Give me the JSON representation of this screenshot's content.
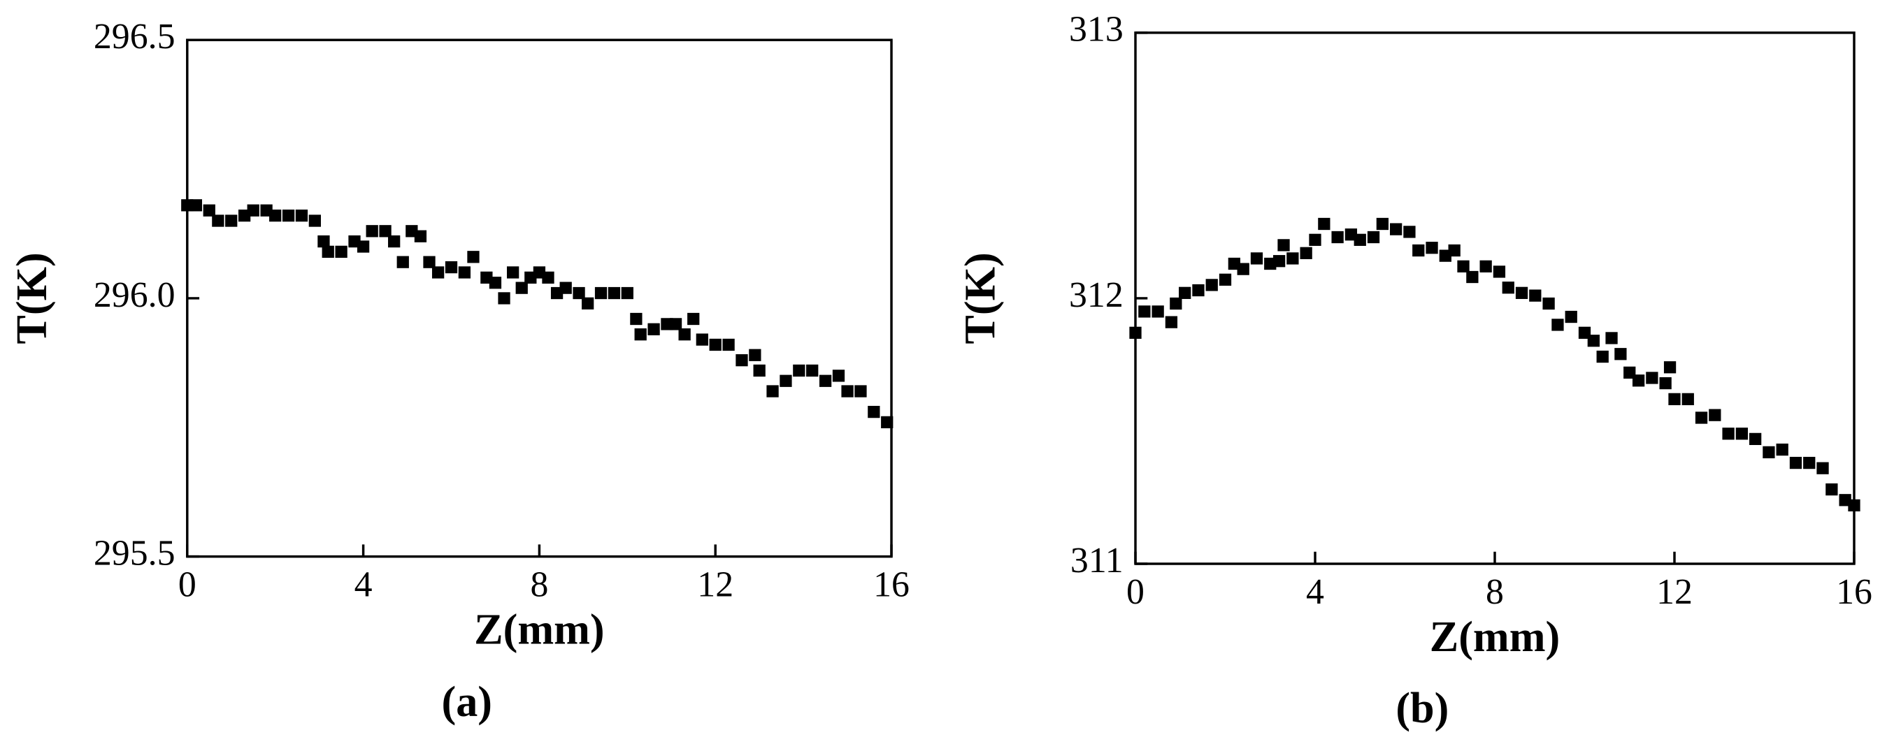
{
  "chart_data": [
    {
      "type": "scatter",
      "caption": "(a)",
      "xlabel": "Z(mm)",
      "ylabel": "T(K)",
      "color": "#000000",
      "xlim": [
        0,
        16
      ],
      "xticks": [
        0,
        4,
        8,
        12,
        16
      ],
      "ylim": [
        295.5,
        296.5
      ],
      "yticks": [
        295.5,
        {
          "value": 296,
          "label": "296.0"
        },
        296.5
      ],
      "x": [
        0,
        0.2,
        0.5,
        0.7,
        1.0,
        1.3,
        1.5,
        1.8,
        2.0,
        2.3,
        2.6,
        2.9,
        3.1,
        3.2,
        3.5,
        3.8,
        4.0,
        4.2,
        4.5,
        4.7,
        4.9,
        5.1,
        5.3,
        5.5,
        5.7,
        6.0,
        6.3,
        6.5,
        6.8,
        7.0,
        7.2,
        7.4,
        7.6,
        7.8,
        8.0,
        8.2,
        8.4,
        8.6,
        8.9,
        9.1,
        9.4,
        9.7,
        10.0,
        10.2,
        10.3,
        10.6,
        10.9,
        11.1,
        11.3,
        11.5,
        11.7,
        12.0,
        12.3,
        12.6,
        12.9,
        13.0,
        13.3,
        13.6,
        13.9,
        14.2,
        14.5,
        14.8,
        15.0,
        15.3,
        15.6,
        15.9
      ],
      "y": [
        296.18,
        296.18,
        296.17,
        296.15,
        296.15,
        296.16,
        296.17,
        296.17,
        296.16,
        296.16,
        296.16,
        296.15,
        296.11,
        296.09,
        296.09,
        296.11,
        296.1,
        296.13,
        296.13,
        296.11,
        296.07,
        296.13,
        296.12,
        296.07,
        296.05,
        296.06,
        296.05,
        296.08,
        296.04,
        296.03,
        296.0,
        296.05,
        296.02,
        296.04,
        296.05,
        296.04,
        296.01,
        296.02,
        296.01,
        295.99,
        296.01,
        296.01,
        296.01,
        295.96,
        295.93,
        295.94,
        295.95,
        295.95,
        295.93,
        295.96,
        295.92,
        295.91,
        295.91,
        295.88,
        295.89,
        295.86,
        295.82,
        295.84,
        295.86,
        295.86,
        295.84,
        295.85,
        295.82,
        295.82,
        295.78,
        295.76
      ]
    },
    {
      "type": "scatter",
      "caption": "(b)",
      "xlabel": "Z(mm)",
      "ylabel": "T(K)",
      "color": "#000000",
      "xlim": [
        0,
        16
      ],
      "xticks": [
        0,
        4,
        8,
        12,
        16
      ],
      "ylim": [
        311,
        313
      ],
      "yticks": [
        311,
        312,
        313
      ],
      "x": [
        0,
        0.2,
        0.5,
        0.8,
        0.9,
        1.1,
        1.4,
        1.7,
        2.0,
        2.2,
        2.4,
        2.7,
        3.0,
        3.2,
        3.3,
        3.5,
        3.8,
        4.0,
        4.2,
        4.5,
        4.8,
        5.0,
        5.3,
        5.5,
        5.8,
        6.1,
        6.3,
        6.6,
        6.9,
        7.1,
        7.3,
        7.5,
        7.8,
        8.1,
        8.3,
        8.6,
        8.9,
        9.2,
        9.4,
        9.7,
        10.0,
        10.2,
        10.4,
        10.6,
        10.8,
        11.0,
        11.2,
        11.5,
        11.8,
        11.9,
        12.0,
        12.3,
        12.6,
        12.9,
        13.2,
        13.5,
        13.8,
        14.1,
        14.4,
        14.7,
        15.0,
        15.3,
        15.5,
        15.8,
        16.0
      ],
      "y": [
        311.87,
        311.95,
        311.95,
        311.91,
        311.98,
        312.02,
        312.03,
        312.05,
        312.07,
        312.13,
        312.11,
        312.15,
        312.13,
        312.14,
        312.2,
        312.15,
        312.17,
        312.22,
        312.28,
        312.23,
        312.24,
        312.22,
        312.23,
        312.28,
        312.26,
        312.25,
        312.18,
        312.19,
        312.16,
        312.18,
        312.12,
        312.08,
        312.12,
        312.1,
        312.04,
        312.02,
        312.01,
        311.98,
        311.9,
        311.93,
        311.87,
        311.84,
        311.78,
        311.85,
        311.79,
        311.72,
        311.69,
        311.7,
        311.68,
        311.74,
        311.62,
        311.62,
        311.55,
        311.56,
        311.49,
        311.49,
        311.47,
        311.42,
        311.43,
        311.38,
        311.38,
        311.36,
        311.28,
        311.24,
        311.22
      ]
    }
  ]
}
